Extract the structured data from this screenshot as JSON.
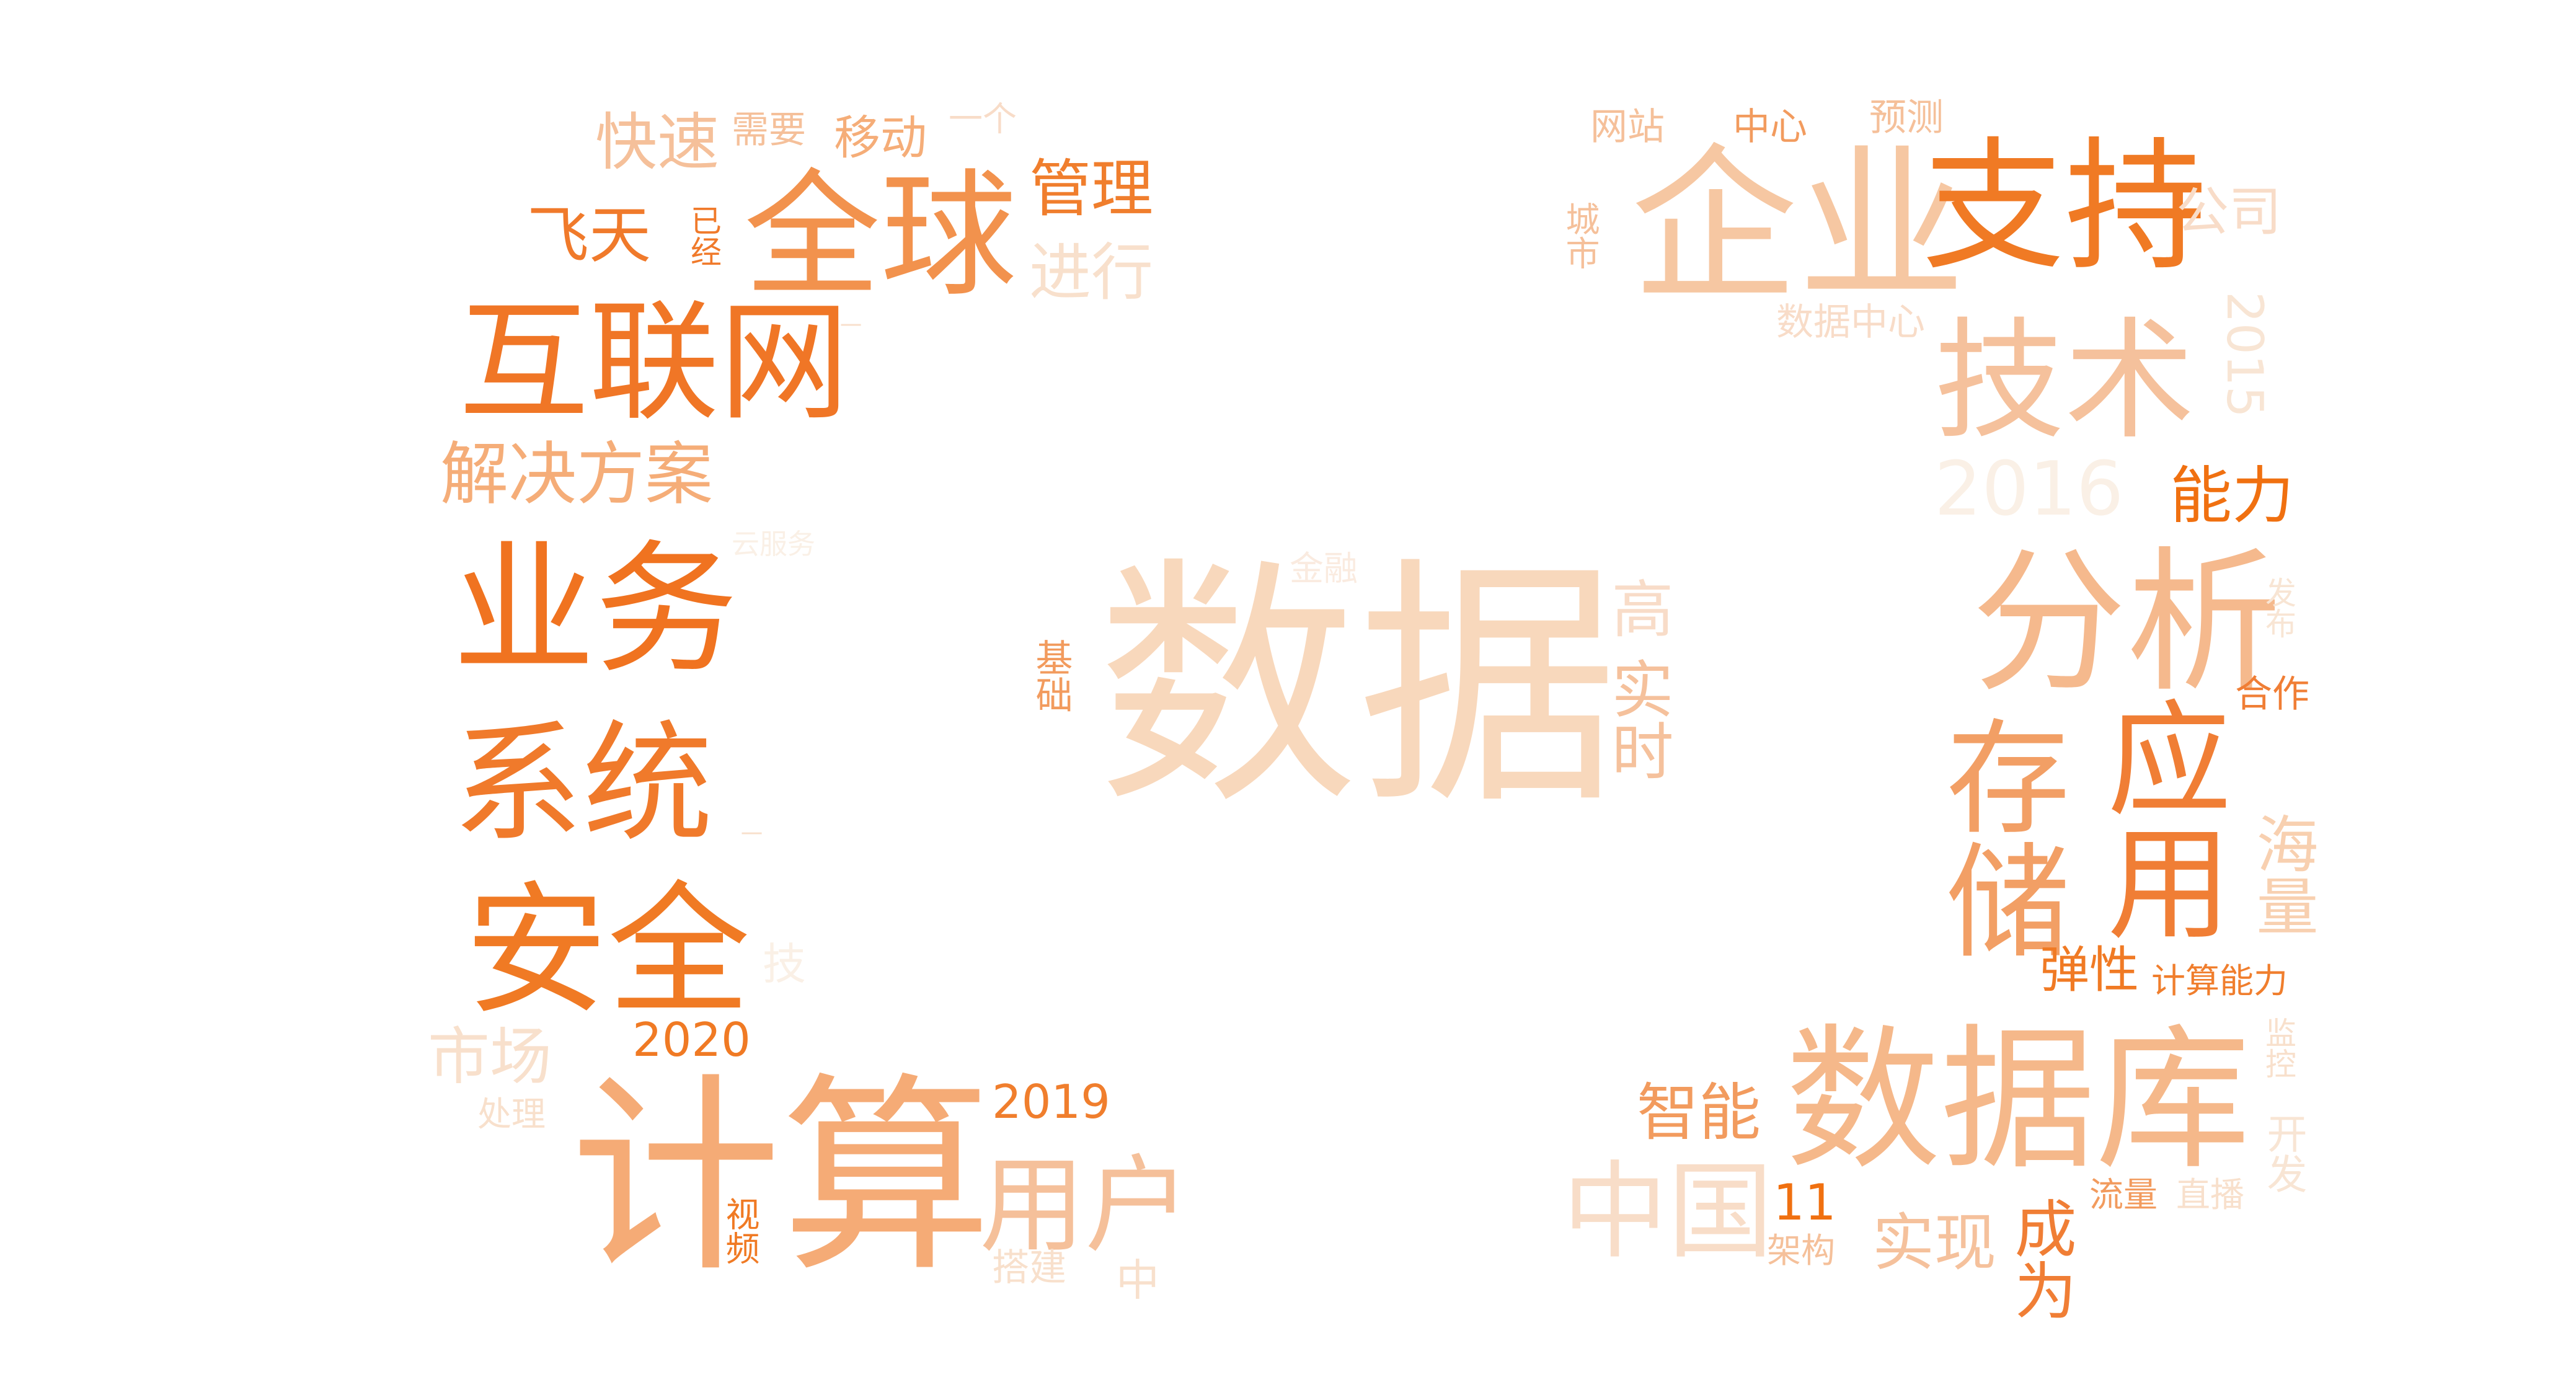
{
  "words": [
    {
      "id": "shuju",
      "text": "数据",
      "color": "#f8d8bc"
    },
    {
      "id": "qiye",
      "text": "企业",
      "color": "#f6c7a2"
    },
    {
      "id": "zhichi",
      "text": "支持",
      "color": "#f07a24"
    },
    {
      "id": "hulianwang",
      "text": "互联网",
      "color": "#f07626"
    },
    {
      "id": "quanqiu",
      "text": "全球",
      "color": "#f2924d"
    },
    {
      "id": "jishu",
      "text": "技术",
      "color": "#f5c19c"
    },
    {
      "id": "yewu",
      "text": "业务",
      "color": "#f07320"
    },
    {
      "id": "fenxi",
      "text": "分析",
      "color": "#f5b98d"
    },
    {
      "id": "xitong",
      "text": "系统",
      "color": "#f07a2b"
    },
    {
      "id": "anquan",
      "text": "安全",
      "color": "#f07a24"
    },
    {
      "id": "jisuan",
      "text": "计算",
      "color": "#f5ab76"
    },
    {
      "id": "shujuku",
      "text": "数据库",
      "color": "#f5b88a"
    },
    {
      "id": "cunchu",
      "text": "存储",
      "color": "#f29f65"
    },
    {
      "id": "yingyong",
      "text": "应用",
      "color": "#f07e35"
    },
    {
      "id": "jiejuefangan",
      "text": "解决方案",
      "color": "#f5ad78"
    },
    {
      "id": "yonghu",
      "text": "用户",
      "color": "#f5c09a"
    },
    {
      "id": "zhongguo",
      "text": "中国",
      "color": "#f8ddc8"
    },
    {
      "id": "kuaisu",
      "text": "快速",
      "color": "#f5c09a"
    },
    {
      "id": "feitian",
      "text": "飞天",
      "color": "#f07a2b"
    },
    {
      "id": "guanli",
      "text": "管理",
      "color": "#f07e2d"
    },
    {
      "id": "jinxing",
      "text": "进行",
      "color": "#f8e0cc"
    },
    {
      "id": "gongsi",
      "text": "公司",
      "color": "#f8dcc8"
    },
    {
      "id": "shishi",
      "text": "实时",
      "color": "#f5c19c"
    },
    {
      "id": "gao",
      "text": "高",
      "color": "#f8dcc8"
    },
    {
      "id": "nengli",
      "text": "能力",
      "color": "#f07010"
    },
    {
      "id": "y2016",
      "text": "2016",
      "color": "#faf0e6"
    },
    {
      "id": "y2015",
      "text": "2015",
      "color": "#f8e5d4"
    },
    {
      "id": "shichang",
      "text": "市场",
      "color": "#f8e0cc"
    },
    {
      "id": "y2020",
      "text": "2020",
      "color": "#f07a24"
    },
    {
      "id": "y2019",
      "text": "2019",
      "color": "#f07e2d"
    },
    {
      "id": "zhineng",
      "text": "智能",
      "color": "#f29b5e"
    },
    {
      "id": "shixian",
      "text": "实现",
      "color": "#f5c19c"
    },
    {
      "id": "chengwei",
      "text": "成为",
      "color": "#f07e35"
    },
    {
      "id": "haliang",
      "text": "海量",
      "color": "#f8d0b0"
    },
    {
      "id": "tanxing",
      "text": "弹性",
      "color": "#f07a24"
    },
    {
      "id": "jisuannengli",
      "text": "计算能力",
      "color": "#f07e2d"
    },
    {
      "id": "yidong",
      "text": "移动",
      "color": "#f5ad78"
    },
    {
      "id": "xuyao",
      "text": "需要",
      "color": "#f5c09a"
    },
    {
      "id": "yige",
      "text": "一个",
      "color": "#f8dcc8"
    },
    {
      "id": "yijing",
      "text": "已经",
      "color": "#f07a2b"
    },
    {
      "id": "wangzhan",
      "text": "网站",
      "color": "#f5c09a"
    },
    {
      "id": "zhongxin",
      "text": "中心",
      "color": "#f29b5e"
    },
    {
      "id": "yuce",
      "text": "预测",
      "color": "#f5c09a"
    },
    {
      "id": "chengshi",
      "text": "城市",
      "color": "#f5c09a"
    },
    {
      "id": "shujuzhongxin",
      "text": "数据中心",
      "color": "#f8dcc8"
    },
    {
      "id": "hezuo",
      "text": "合作",
      "color": "#f07e35"
    },
    {
      "id": "fabu",
      "text": "发布",
      "color": "#f8e5d4"
    },
    {
      "id": "jichu",
      "text": "基础",
      "color": "#f29b5e"
    },
    {
      "id": "jinrong",
      "text": "金融",
      "color": "#faebe0"
    },
    {
      "id": "chuli",
      "text": "处理",
      "color": "#f8e0cc"
    },
    {
      "id": "shipin",
      "text": "视频",
      "color": "#f07a24"
    },
    {
      "id": "dajian",
      "text": "搭建",
      "color": "#f8e0cc"
    },
    {
      "id": "zhong",
      "text": "中",
      "color": "#f8e0cc"
    },
    {
      "id": "n11",
      "text": "11",
      "color": "#f07010"
    },
    {
      "id": "jiagou",
      "text": "架构",
      "color": "#f5c09a"
    },
    {
      "id": "liuliang",
      "text": "流量",
      "color": "#f29b5e"
    },
    {
      "id": "zhibo",
      "text": "直播",
      "color": "#f8e0cc"
    },
    {
      "id": "jiankong",
      "text": "监控",
      "color": "#f8e0cc"
    },
    {
      "id": "kaifa",
      "text": "开发",
      "color": "#f8e5d4"
    },
    {
      "id": "ganggui",
      "text": "云服务",
      "color": "#faf0e6"
    },
    {
      "id": "qita",
      "text": "技",
      "color": "#faf0e6"
    },
    {
      "id": "dash1",
      "text": "一",
      "color": "#f8e0cc"
    },
    {
      "id": "dash2",
      "text": "一",
      "color": "#f8e0cc"
    }
  ]
}
